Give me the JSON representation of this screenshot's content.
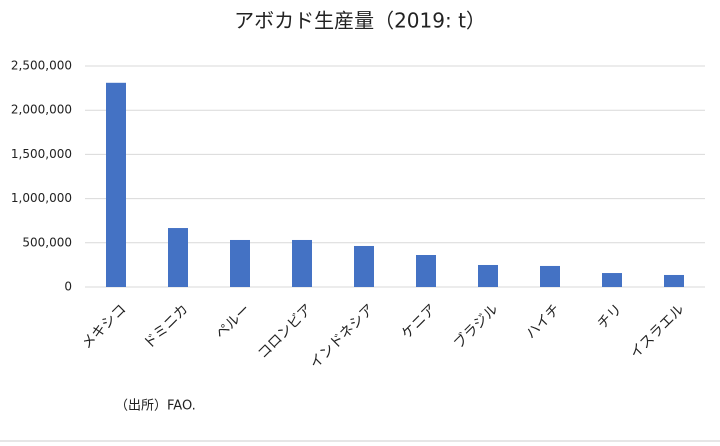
{
  "chart_data": {
    "type": "bar",
    "title": "アボカド生産量（2019: t）",
    "categories": [
      "メキシコ",
      "ドミニカ",
      "ペルー",
      "コロンビア",
      "インドネシア",
      "ケニア",
      "ブラジル",
      "ハイチ",
      "チリ",
      "イスラエル"
    ],
    "values": [
      2310000,
      667000,
      532000,
      532000,
      464000,
      362000,
      249000,
      238000,
      158000,
      136000
    ],
    "color": "#4472c4",
    "ylim": [
      0,
      2500000
    ],
    "yticks": [
      0,
      {
        "value": 500000,
        "label": "500,000"
      },
      {
        "value": 1000000,
        "label": "1,000,000"
      },
      {
        "value": 1500000,
        "label": "1,500,000"
      },
      {
        "value": 2000000,
        "label": "2,000,000"
      },
      {
        "value": 2500000,
        "label": "2,500,000"
      }
    ],
    "grid": true,
    "source": "（出所）FAO."
  }
}
